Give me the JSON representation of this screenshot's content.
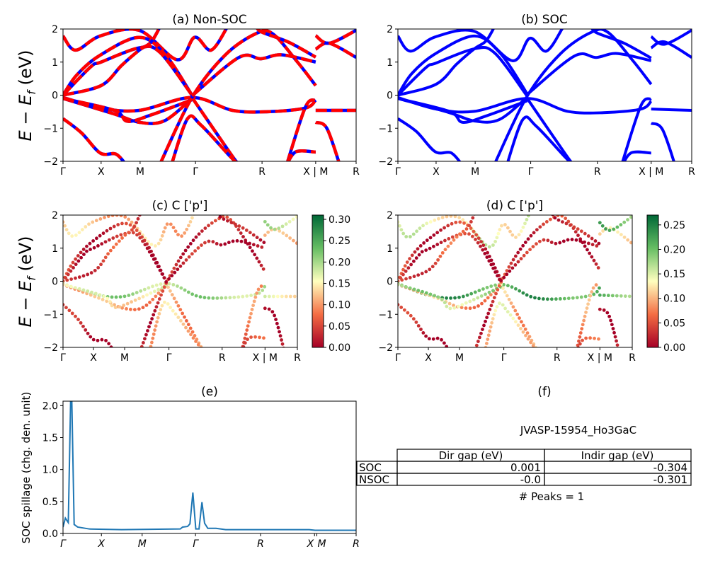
{
  "chart_data": [
    {
      "panel": "a",
      "type": "line",
      "title": "(a) Non-SOC",
      "ylabel": "E − E_f (eV)",
      "ylim": [
        -2,
        2
      ],
      "yticks": [
        -2,
        -1,
        0,
        1,
        2
      ],
      "kpath_labels": [
        "Γ",
        "X",
        "M",
        "Γ",
        "R",
        "X | M",
        "R"
      ],
      "kpath_positions": [
        0,
        0.13,
        0.263,
        0.452,
        0.679,
        0.862,
        1
      ],
      "line_colors": [
        "#0000ff",
        "#ff0000"
      ],
      "line_style": "red dashed over blue"
    },
    {
      "panel": "b",
      "type": "line",
      "title": "(b) SOC",
      "ylim": [
        -2,
        2
      ],
      "yticks": [
        -2,
        -1,
        0,
        1,
        2
      ],
      "kpath_labels": [
        "Γ",
        "X",
        "M",
        "Γ",
        "R",
        "X | M",
        "R"
      ],
      "kpath_positions": [
        0,
        0.13,
        0.263,
        0.452,
        0.679,
        0.862,
        1
      ],
      "line_colors": [
        "#0000ff"
      ]
    },
    {
      "panel": "c",
      "type": "scatter",
      "title": "(c)  C ['p']",
      "ylabel": "E − E_f (eV)",
      "ylim": [
        -2,
        2
      ],
      "yticks": [
        -2,
        -1,
        0,
        1,
        2
      ],
      "kpath_labels": [
        "Γ",
        "X",
        "M",
        "Γ",
        "R",
        "X | M",
        "R"
      ],
      "colorbar": {
        "colormap": "RdYlGn",
        "range": [
          0,
          0.31
        ],
        "ticks": [
          "0.00",
          "0.05",
          "0.10",
          "0.15",
          "0.20",
          "0.25",
          "0.30"
        ]
      },
      "band_weights": [
        0.12,
        0.03,
        0.02,
        0.05,
        0.2,
        0.1,
        0.15,
        0.02,
        0.1,
        0.03,
        0.12,
        0.02,
        0.01,
        0.1,
        0.18,
        0.16,
        0.02,
        0.08,
        0.05
      ]
    },
    {
      "panel": "d",
      "type": "scatter",
      "title": "(d) C ['p']",
      "ylim": [
        -2,
        2
      ],
      "yticks": [
        -2,
        -1,
        0,
        1,
        2
      ],
      "kpath_labels": [
        "Γ",
        "X",
        "M",
        "Γ",
        "R",
        "X | M",
        "R"
      ],
      "colorbar": {
        "colormap": "RdYlGn",
        "range": [
          0,
          0.27
        ],
        "ticks": [
          "0.00",
          "0.05",
          "0.10",
          "0.15",
          "0.20",
          "0.25"
        ]
      },
      "band_weights": [
        0.14,
        0.03,
        0.02,
        0.05,
        0.22,
        0.09,
        0.17,
        0.02,
        0.1,
        0.03,
        0.12,
        0.02,
        0.01,
        0.1,
        0.2,
        0.2,
        0.02,
        0.08,
        0.05
      ]
    },
    {
      "panel": "e",
      "type": "line",
      "title": "(e)",
      "ylabel": "SOC spillage (chg. den. unit)",
      "ylim": [
        0,
        2.07
      ],
      "yticks": [
        "0.0",
        "0.5",
        "1.0",
        "1.5",
        "2.0"
      ],
      "kpath_labels": [
        "Γ",
        "X",
        "M",
        "Γ",
        "R",
        "X",
        "M",
        "R"
      ],
      "kpath_positions": [
        0,
        0.131,
        0.27,
        0.452,
        0.674,
        0.858,
        0.866,
        1
      ],
      "line_color": "#1f77b4",
      "x": [
        0,
        0.008,
        0.018,
        0.026,
        0.03,
        0.038,
        0.05,
        0.09,
        0.2,
        0.4,
        0.408,
        0.425,
        0.433,
        0.443,
        0.453,
        0.464,
        0.474,
        0.483,
        0.494,
        0.522,
        0.555,
        0.84,
        0.86,
        1
      ],
      "y": [
        0.1,
        0.24,
        0.17,
        2.08,
        2.08,
        0.14,
        0.1,
        0.07,
        0.06,
        0.07,
        0.1,
        0.11,
        0.15,
        0.64,
        0.07,
        0.07,
        0.49,
        0.16,
        0.08,
        0.08,
        0.06,
        0.06,
        0.05,
        0.05
      ]
    }
  ],
  "bands": [
    [
      [
        0,
        1.79
      ],
      [
        0.043,
        1.36
      ],
      [
        0.127,
        1.79
      ],
      [
        0.26,
        1.96
      ],
      [
        0.39,
        1.07
      ],
      [
        0.449,
        1.75
      ],
      [
        0.505,
        1.36
      ],
      [
        0.56,
        2.05
      ]
    ],
    [
      [
        0,
        0
      ],
      [
        0.047,
        0.61
      ],
      [
        0.127,
        1.21
      ],
      [
        0.26,
        1.75
      ],
      [
        0.35,
        1.21
      ],
      [
        0.44,
        0
      ]
    ],
    [
      [
        0,
        0
      ],
      [
        0.095,
        0.86
      ],
      [
        0.13,
        1.0
      ],
      [
        0.26,
        1.43
      ],
      [
        0.33,
        1.3
      ],
      [
        0.44,
        0
      ]
    ],
    [
      [
        0,
        0
      ],
      [
        0.13,
        0.29
      ],
      [
        0.2,
        0.9
      ],
      [
        0.26,
        1.36
      ],
      [
        0.3,
        1.6
      ],
      [
        0.33,
        2.05
      ]
    ],
    [
      [
        0,
        -0.07
      ],
      [
        0.13,
        -0.39
      ],
      [
        0.26,
        -0.46
      ],
      [
        0.44,
        -0.07
      ],
      [
        0.578,
        -0.46
      ],
      [
        0.7,
        -0.5
      ],
      [
        0.827,
        -0.39
      ],
      [
        0.862,
        -0.15
      ]
    ],
    [
      [
        0,
        -0.1
      ],
      [
        0.175,
        -0.57
      ],
      [
        0.26,
        -0.82
      ],
      [
        0.345,
        -0.78
      ],
      [
        0.44,
        -0.1
      ]
    ],
    [
      [
        0,
        -0.1
      ],
      [
        0.175,
        -0.46
      ],
      [
        0.22,
        -0.79
      ],
      [
        0.3,
        -0.6
      ],
      [
        0.44,
        -0.14
      ]
    ],
    [
      [
        0,
        -0.71
      ],
      [
        0.063,
        -1.14
      ],
      [
        0.127,
        -1.75
      ],
      [
        0.18,
        -1.78
      ],
      [
        0.215,
        -2.1
      ]
    ],
    [
      [
        0.44,
        -0.07
      ],
      [
        0.57,
        -1.75
      ],
      [
        0.6,
        -2.1
      ]
    ],
    [
      [
        0.33,
        -2.1
      ],
      [
        0.44,
        -0.07
      ],
      [
        0.553,
        1.21
      ],
      [
        0.658,
        1.86
      ],
      [
        0.715,
        1.86
      ],
      [
        0.8,
        1.0
      ],
      [
        0.862,
        0.29
      ]
    ],
    [
      [
        0.37,
        -2.1
      ],
      [
        0.425,
        -0.71
      ],
      [
        0.47,
        -0.9
      ],
      [
        0.57,
        -1.85
      ],
      [
        0.6,
        -2.1
      ]
    ],
    [
      [
        0.44,
        -0.02
      ],
      [
        0.6,
        1.14
      ],
      [
        0.675,
        1.1
      ],
      [
        0.746,
        1.22
      ],
      [
        0.862,
        1.0
      ]
    ],
    [
      [
        0.66,
        2.05
      ],
      [
        0.68,
        1.9
      ],
      [
        0.77,
        1.6
      ],
      [
        0.862,
        1.15
      ]
    ],
    [
      [
        0.862,
        1.39
      ],
      [
        0.908,
        1.57
      ],
      [
        1,
        1.14
      ]
    ],
    [
      [
        0.862,
        1.8
      ],
      [
        0.908,
        1.57
      ],
      [
        1,
        1.96
      ]
    ],
    [
      [
        0.862,
        -0.46
      ],
      [
        1,
        -0.46
      ]
    ],
    [
      [
        0.862,
        -0.82
      ],
      [
        0.9,
        -1.0
      ],
      [
        0.944,
        -2.1
      ]
    ],
    [
      [
        0.763,
        -2.1
      ],
      [
        0.827,
        -0.36
      ],
      [
        0.862,
        -0.15
      ]
    ],
    [
      [
        0.763,
        -2.1
      ],
      [
        0.795,
        -1.71
      ],
      [
        0.862,
        -1.72
      ]
    ]
  ],
  "table": {
    "title": "(f)",
    "material": "JVASP-15954_Ho3GaC",
    "columns": [
      "Dir gap (eV)",
      "Indir gap (eV)"
    ],
    "rows": [
      {
        "label": "SOC",
        "values": [
          "0.001",
          "-0.304"
        ]
      },
      {
        "label": "NSOC",
        "values": [
          "-0.0",
          "-0.301"
        ]
      }
    ],
    "peaks": "# Peaks = 1"
  },
  "ylabel_band": "E − E",
  "ylabel_sub": "f",
  "ylabel_unit": " (eV)"
}
